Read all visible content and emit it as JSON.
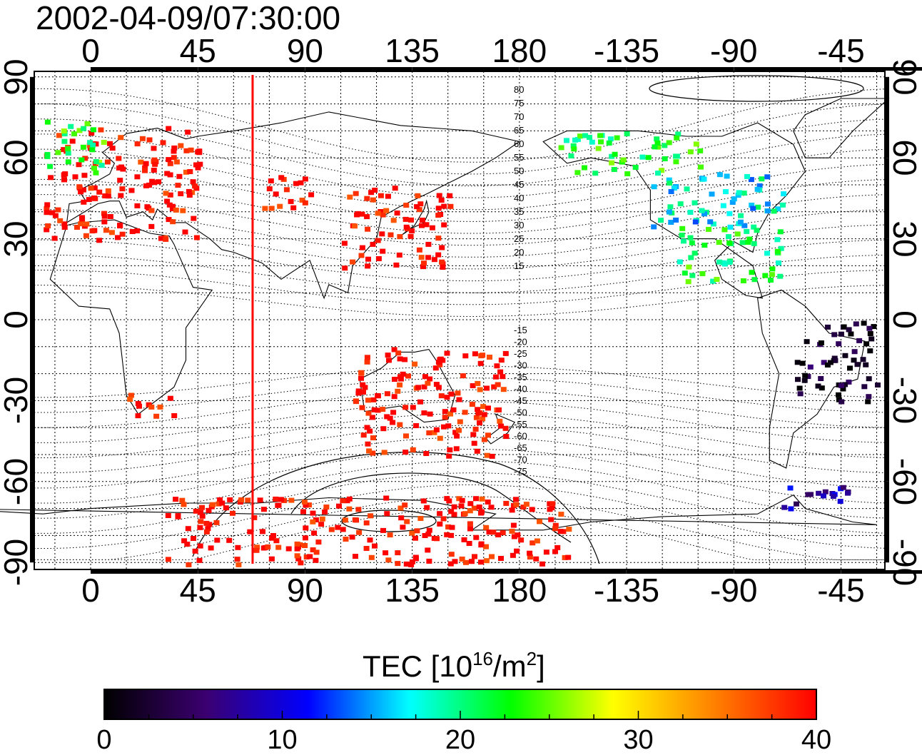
{
  "title": "2002-04-09/07:30:00",
  "map": {
    "lon_ticks_top": [
      "0",
      "45",
      "90",
      "135",
      "180",
      "-135",
      "-90",
      "-45"
    ],
    "lon_ticks_bottom": [
      "0",
      "45",
      "90",
      "135",
      "180",
      "-135",
      "-90",
      "-45"
    ],
    "lat_ticks_left": [
      "90",
      "60",
      "30",
      "0",
      "-30",
      "-60",
      "-90"
    ],
    "lat_ticks_right": [
      "90",
      "60",
      "30",
      "0",
      "-30",
      "-60",
      "-90"
    ],
    "contour_labels_north": [
      "80",
      "75",
      "70",
      "65",
      "60",
      "55",
      "50",
      "45",
      "40",
      "35",
      "30",
      "25",
      "20",
      "15"
    ],
    "contour_labels_south": [
      "-15",
      "-20",
      "-25",
      "-30",
      "-35",
      "-40",
      "-45",
      "-50",
      "-55",
      "-60",
      "-65",
      "-70",
      "-75"
    ],
    "marker_longitude": 68,
    "marker_color": "#ff0000"
  },
  "colorbar": {
    "title_prefix": "TEC  [10",
    "title_exp1": "16",
    "title_mid": "/m",
    "title_exp2": "2",
    "title_suffix": "]",
    "min": 0,
    "max": 40,
    "tick_labels": [
      "0",
      "10",
      "20",
      "30",
      "40"
    ],
    "colors": [
      "#000000",
      "#3b0070",
      "#0000ff",
      "#00ffff",
      "#00ff00",
      "#ffff00",
      "#ff8000",
      "#ff0000"
    ]
  },
  "chart_data": {
    "type": "heatmap",
    "title": "2002-04-09/07:30:00",
    "xlim": [
      -24,
      330
    ],
    "ylim": [
      -90,
      90
    ],
    "colorbar_range": [
      0,
      40
    ],
    "regions": [
      {
        "lon": [
          -20,
          45
        ],
        "lat": [
          30,
          72
        ],
        "tec": 40
      },
      {
        "lon": [
          -20,
          5
        ],
        "lat": [
          55,
          75
        ],
        "tec": 23
      },
      {
        "lon": [
          105,
          150
        ],
        "lat": [
          20,
          50
        ],
        "tec": 40
      },
      {
        "lon": [
          72,
          95
        ],
        "lat": [
          42,
          55
        ],
        "tec": 40
      },
      {
        "lon": [
          110,
          175
        ],
        "lat": [
          -50,
          -10
        ],
        "tec": 40
      },
      {
        "lon": [
          15,
          35
        ],
        "lat": [
          -35,
          -25
        ],
        "tec": 40
      },
      {
        "lon": [
          195,
          255
        ],
        "lat": [
          55,
          70
        ],
        "tec": 22
      },
      {
        "lon": [
          235,
          290
        ],
        "lat": [
          35,
          55
        ],
        "tec": 17
      },
      {
        "lon": [
          245,
          290
        ],
        "lat": [
          15,
          35
        ],
        "tec": 22
      },
      {
        "lon": [
          295,
          330
        ],
        "lat": [
          -30,
          0
        ],
        "tec": 2
      },
      {
        "lon": [
          290,
          320
        ],
        "lat": [
          -70,
          -60
        ],
        "tec": 8
      },
      {
        "lon": [
          30,
          200
        ],
        "lat": [
          -90,
          -65
        ],
        "tec": 40
      }
    ]
  }
}
